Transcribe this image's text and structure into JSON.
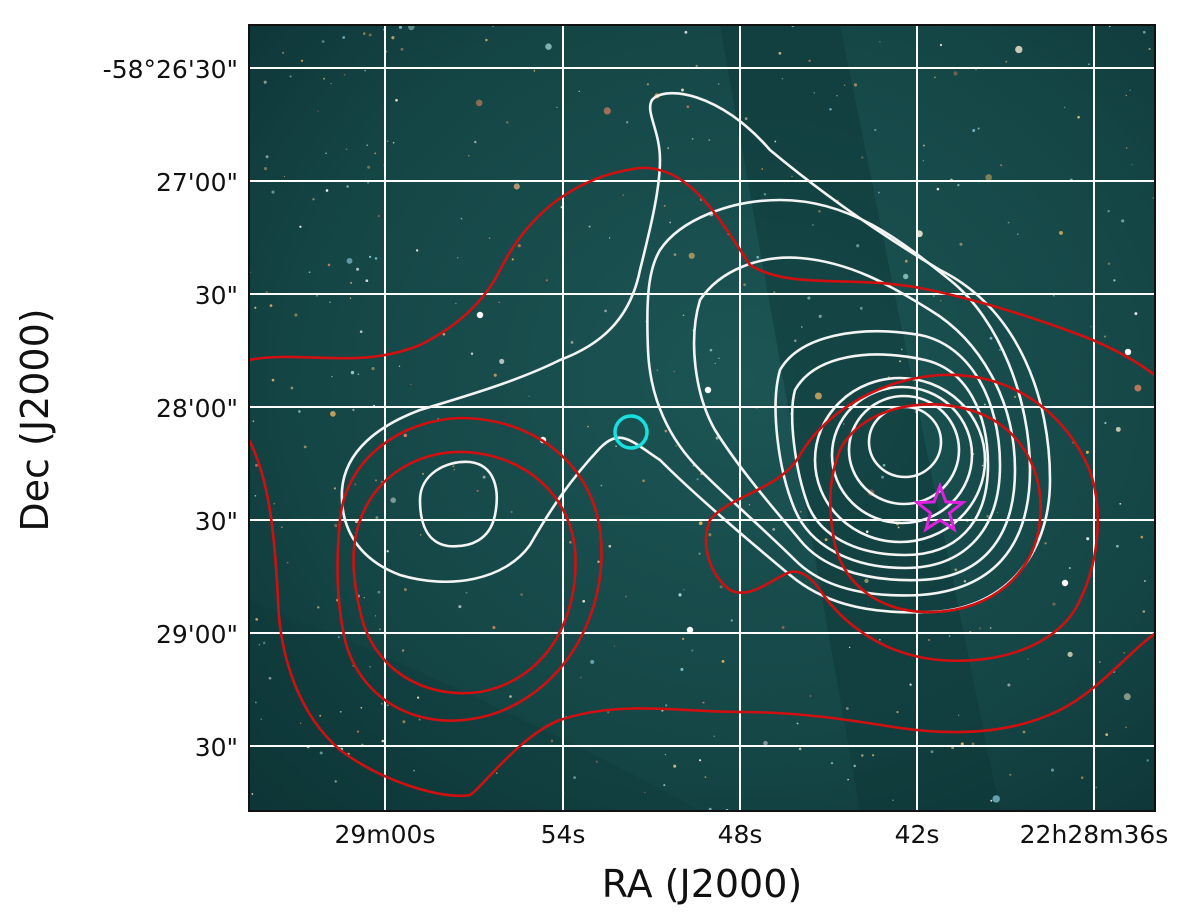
{
  "figure": {
    "x_axis_label": "RA (J2000)",
    "y_axis_label": "Dec (J2000)",
    "x_tick_labels": [
      "29m00s",
      "54s",
      "48s",
      "42s",
      "22h28m36s"
    ],
    "y_tick_labels": [
      "-58°26'30\"",
      "27'00\"",
      "30\"",
      "28'00\"",
      "30\"",
      "29'00\"",
      "30\""
    ],
    "colors": {
      "image_background": "#0f3a3b",
      "grid": "#ffffff",
      "white_contours": "#f4f4f4",
      "red_contours": "#d01010",
      "circle_marker": "#19e0e0",
      "star_marker": "#e020e0"
    },
    "markers": [
      {
        "shape": "circle",
        "color": "cyan"
      },
      {
        "shape": "star",
        "color": "magenta"
      }
    ]
  }
}
